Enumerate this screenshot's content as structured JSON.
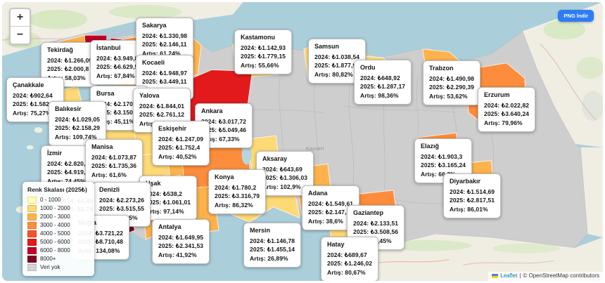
{
  "controls": {
    "zoom_in": "+",
    "zoom_out": "−"
  },
  "download": {
    "label": "PNG İndir"
  },
  "tooltip_labels": {
    "y2024": "2024:",
    "y2025": "2025:",
    "artis": "Artış:"
  },
  "legend": {
    "title": "Renk Skalası (2025₺)",
    "items": [
      {
        "label": "0 - 1000",
        "color": "#ffffb2"
      },
      {
        "label": "1000 - 2000",
        "color": "#fed976"
      },
      {
        "label": "2000 - 3000",
        "color": "#feb24c"
      },
      {
        "label": "3000 - 4000",
        "color": "#fd8d3c"
      },
      {
        "label": "4000 - 5000",
        "color": "#fc4e2a"
      },
      {
        "label": "5000 - 6000",
        "color": "#e31a1c"
      },
      {
        "label": "6000 - 8000",
        "color": "#bd0026"
      },
      {
        "label": "8000+",
        "color": "#800026"
      },
      {
        "label": "Veri yok",
        "color": "#d3d3d3"
      }
    ]
  },
  "provinces": [
    {
      "name": "Tekirdağ",
      "v2024": "₺1.266,09",
      "v2025": "₺2.000,8",
      "artis": "58,03%",
      "color": "#feb24c"
    },
    {
      "name": "İstanbul",
      "v2024": "₺3.949,82",
      "v2025": "₺6.629,57",
      "artis": "67,84%",
      "color": "#bd0026"
    },
    {
      "name": "Sakarya",
      "v2024": "₺1.330,98",
      "v2025": "₺2.146,11",
      "artis": "61,24%",
      "color": "#feb24c"
    },
    {
      "name": "Kocaeli",
      "v2024": "₺1.948,97",
      "v2025": "₺3.449,11",
      "artis": "76,97%",
      "color": "#fd8d3c"
    },
    {
      "name": "Kastamonu",
      "v2024": "₺1.142,93",
      "v2025": "₺1.779,15",
      "artis": "55,66%",
      "color": "#fed976"
    },
    {
      "name": "Samsun",
      "v2024": "₺1.038,54",
      "v2025": "₺1.877,93",
      "artis": "80,82%",
      "color": "#fed976"
    },
    {
      "name": "Ordu",
      "v2024": "₺648,92",
      "v2025": "₺1.287,17",
      "artis": "98,36%",
      "color": "#fed976"
    },
    {
      "name": "Trabzon",
      "v2024": "₺1.490,98",
      "v2025": "₺2.290,39",
      "artis": "53,62%",
      "color": "#feb24c"
    },
    {
      "name": "Erzurum",
      "v2024": "₺2.022,82",
      "v2025": "₺3.640,24",
      "artis": "79,96%",
      "color": "#fd8d3c"
    },
    {
      "name": "Çanakkale",
      "v2024": "₺902,64",
      "v2025": "₺1.582,08",
      "artis": "75,27%",
      "color": "#fed976"
    },
    {
      "name": "Bursa",
      "v2024": "₺2.170,97",
      "v2025": "₺3.150,29",
      "artis": "45,11%",
      "color": "#fd8d3c"
    },
    {
      "name": "Yalova",
      "v2024": "₺1.844,01",
      "v2025": "₺2.761,12",
      "artis": "49,73%",
      "color": "#feb24c"
    },
    {
      "name": "Balıkesir",
      "v2024": "₺1.029,05",
      "v2025": "₺2.158,29",
      "artis": "109,74%",
      "color": "#feb24c"
    },
    {
      "name": "Ankara",
      "v2024": "₺3.017,72",
      "v2025": "₺5.049,46",
      "artis": "67,33%",
      "color": "#e31a1c"
    },
    {
      "name": "Eskişehir",
      "v2024": "₺1.247,09",
      "v2025": "₺1.752,4",
      "artis": "40,52%",
      "color": "#fed976"
    },
    {
      "name": "İzmir",
      "v2024": "₺2.820,25",
      "v2025": "₺4.919,92",
      "artis": "74,45%",
      "color": "#fc4e2a"
    },
    {
      "name": "Manisa",
      "v2024": "₺1.073,87",
      "v2025": "₺1.735,36",
      "artis": "61,6%",
      "color": "#fed976"
    },
    {
      "name": "Aksaray",
      "v2024": "₺643,69",
      "v2025": "₺1.306,03",
      "artis": "102,9%",
      "color": "#fed976"
    },
    {
      "name": "Elazığ",
      "v2024": "₺1.903,3",
      "v2025": "₺3.165,24",
      "artis": "66,3%",
      "color": "#fd8d3c"
    },
    {
      "name": "Uşak",
      "v2024": "₺538,2",
      "v2025": "₺1.061,01",
      "artis": "97,14%",
      "color": "#fed976"
    },
    {
      "name": "Konya",
      "v2024": "₺1.780,2",
      "v2025": "₺3.316,79",
      "artis": "86,32%",
      "color": "#fd8d3c"
    },
    {
      "name": "Diyarbakır",
      "v2024": "₺1.514,69",
      "v2025": "₺2.817,51",
      "artis": "86,01%",
      "color": "#feb24c"
    },
    {
      "name": "Aydın",
      "v2024": "₺1.492,89",
      "v2025": "₺1.748,4",
      "artis": "17,12%",
      "color": "#fed976"
    },
    {
      "name": "Denizli",
      "v2024": "₺2.273,26",
      "v2025": "₺3.515,55",
      "artis": "54,65%",
      "color": "#fd8d3c"
    },
    {
      "name": "Adana",
      "v2024": "₺1.549,61",
      "v2025": "₺2.147,8",
      "artis": "38,6%",
      "color": "#feb24c"
    },
    {
      "name": "Gaziantep",
      "v2024": "₺2.133,51",
      "v2025": "₺3.508,56",
      "artis": "64,45%",
      "color": "#fd8d3c"
    },
    {
      "name": "Muğla",
      "v2024": "₺3.721,22",
      "v2025": "₺8.710,48",
      "artis": "134,08%",
      "color": "#800026"
    },
    {
      "name": "Antalya",
      "v2024": "₺1.649,95",
      "v2025": "₺2.341,53",
      "artis": "41,92%",
      "color": "#feb24c"
    },
    {
      "name": "Mersin",
      "v2024": "₺1.146,78",
      "v2025": "₺1.455,14",
      "artis": "26,89%",
      "color": "#fed976"
    },
    {
      "name": "Hatay",
      "v2024": "₺689,67",
      "v2025": "₺1.246,02",
      "artis": "80,67%",
      "color": "#fed976"
    }
  ],
  "map": {
    "place_labels": [
      {
        "text": "Kayseri"
      },
      {
        "text": "Mersin"
      }
    ]
  },
  "attribution": {
    "flag_icon": "ukraine-flag-icon",
    "leaflet": "Leaflet",
    "separator": "|",
    "osm": "© OpenStreetMap contributors"
  },
  "colors": {
    "sea": "#aacfdb",
    "no_data_land": "#cecece",
    "neighbor_land": "#f0eee3",
    "button_accent": "#2e7cf6"
  }
}
